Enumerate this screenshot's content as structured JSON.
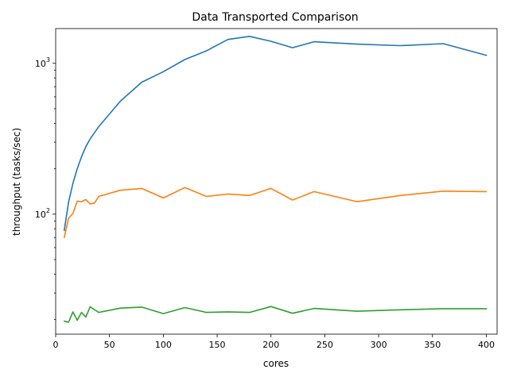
{
  "chart_data": {
    "type": "line",
    "title": "Data Transported Comparison",
    "xlabel": "cores",
    "ylabel": "throughput (tasks/sec)",
    "xlim": [
      0,
      410
    ],
    "ylim": [
      16,
      1700
    ],
    "yscale": "log",
    "grid": false,
    "x_ticks": [
      0,
      50,
      100,
      150,
      200,
      250,
      300,
      350,
      400
    ],
    "x_tick_labels": [
      "0",
      "50",
      "100",
      "150",
      "200",
      "250",
      "300",
      "350",
      "400"
    ],
    "y_ticks": [
      100,
      1000
    ],
    "y_tick_labels": [
      "10^2",
      "10^3"
    ],
    "series": [
      {
        "color": "#1f77b4",
        "x": [
          8,
          12,
          16,
          20,
          24,
          28,
          32,
          40,
          60,
          80,
          100,
          120,
          140,
          160,
          180,
          200,
          220,
          240,
          280,
          320,
          360,
          400
        ],
        "y": [
          78,
          120,
          160,
          200,
          240,
          280,
          315,
          380,
          560,
          750,
          880,
          1060,
          1210,
          1440,
          1510,
          1400,
          1270,
          1390,
          1340,
          1310,
          1350,
          1130
        ]
      },
      {
        "color": "#ff7f0e",
        "x": [
          8,
          12,
          16,
          20,
          24,
          28,
          32,
          36,
          40,
          60,
          80,
          100,
          120,
          140,
          160,
          180,
          200,
          220,
          240,
          280,
          320,
          360,
          400
        ],
        "y": [
          70,
          94,
          101,
          122,
          121,
          125,
          117,
          118,
          131,
          144,
          148,
          128,
          150,
          131,
          136,
          133,
          148,
          124,
          141,
          121,
          133,
          142,
          141
        ]
      },
      {
        "color": "#2ca02c",
        "x": [
          8,
          12,
          16,
          20,
          24,
          28,
          32,
          40,
          60,
          80,
          100,
          120,
          140,
          160,
          180,
          200,
          220,
          240,
          280,
          320,
          360,
          400
        ],
        "y": [
          19.5,
          19.2,
          22.5,
          19.8,
          22.3,
          20.8,
          24.3,
          22.3,
          23.8,
          24.2,
          21.9,
          24.0,
          22.3,
          22.5,
          22.3,
          24.4,
          22.0,
          23.7,
          22.7,
          23.2,
          23.6,
          23.6
        ]
      }
    ]
  }
}
